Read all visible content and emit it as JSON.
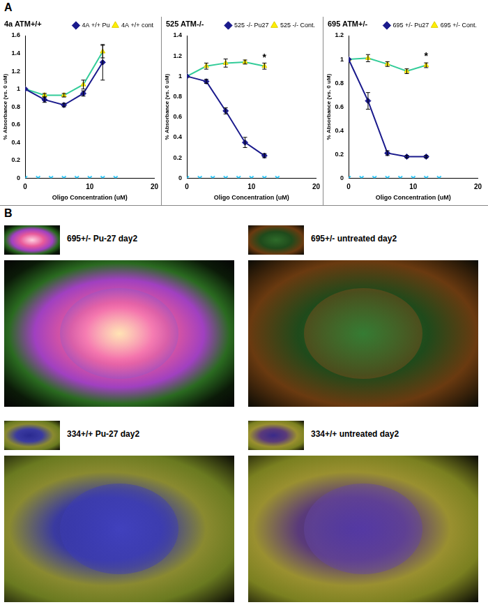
{
  "panel_labels": [
    "A",
    "B"
  ],
  "chart_data": [
    {
      "type": "line",
      "title": "4a ATM+/+",
      "x_label": "Oligo Concentration (uM)",
      "y_label": "% Absorbance (vs. 0 uM)",
      "xlim": [
        0,
        20
      ],
      "xticks": [
        0,
        10,
        20
      ],
      "ylim": [
        0,
        1.6
      ],
      "yticks": [
        0,
        0.2,
        0.4,
        0.6,
        0.8,
        1,
        1.2,
        1.4,
        1.6
      ],
      "legend": "upper right",
      "grid": false,
      "x": [
        0,
        3,
        6,
        9,
        12
      ],
      "series": [
        {
          "name": "4A +/+ Pu",
          "color": "#1a1a8c",
          "marker": "diamond",
          "values": [
            1.0,
            0.88,
            0.82,
            0.95,
            1.3
          ],
          "errors": [
            0,
            0.03,
            0.02,
            0.03,
            0.2
          ]
        },
        {
          "name": "4A +/+ cont",
          "color": "#33cc99",
          "marker": "triangle",
          "values": [
            1.0,
            0.93,
            0.93,
            1.05,
            1.42
          ],
          "errors": [
            0,
            0.02,
            0.02,
            0.05,
            0.07
          ]
        },
        {
          "color": "#33ccff",
          "marker": "x",
          "type": "scatter",
          "x": [
            0,
            2,
            4,
            6,
            8,
            10,
            12,
            14
          ],
          "values": [
            0,
            0,
            0,
            0,
            0,
            0,
            0,
            0
          ]
        }
      ]
    },
    {
      "type": "line",
      "title": "525 ATM-/-",
      "x_label": "Oligo Concentration (uM)",
      "y_label": "% Absorbance (vs. 0 uM)",
      "xlim": [
        0,
        20
      ],
      "xticks": [
        0,
        10,
        20
      ],
      "ylim": [
        0,
        1.4
      ],
      "yticks": [
        0,
        0.2,
        0.4,
        0.6,
        0.8,
        1,
        1.2,
        1.4
      ],
      "legend": "upper right",
      "grid": false,
      "x": [
        0,
        3,
        6,
        9,
        12
      ],
      "series": [
        {
          "name": "525 -/- Pu27",
          "color": "#1a1a8c",
          "marker": "diamond",
          "values": [
            1.0,
            0.95,
            0.66,
            0.35,
            0.22
          ],
          "errors": [
            0,
            0.02,
            0.03,
            0.05,
            0.02
          ]
        },
        {
          "name": "525 -/- Cont.",
          "color": "#33cc99",
          "marker": "triangle",
          "values": [
            1.0,
            1.1,
            1.13,
            1.14,
            1.1
          ],
          "errors": [
            0,
            0.03,
            0.04,
            0.02,
            0.03
          ]
        },
        {
          "color": "#33ccff",
          "marker": "x",
          "type": "scatter",
          "x": [
            0,
            2,
            4,
            6,
            8,
            10,
            12,
            14
          ],
          "values": [
            0,
            0,
            0,
            0,
            0,
            0,
            0,
            0
          ]
        }
      ],
      "annotations": [
        {
          "text": "*",
          "x": 12,
          "y": 1.18
        }
      ]
    },
    {
      "type": "line",
      "title": "695 ATM+/-",
      "x_label": "Oligo Concentration (uM)",
      "y_label": "% Absorbance (vs. 0 uM)",
      "xlim": [
        0,
        20
      ],
      "xticks": [
        0,
        10,
        20
      ],
      "ylim": [
        0,
        1.2
      ],
      "yticks": [
        0,
        0.2,
        0.4,
        0.6,
        0.8,
        1,
        1.2
      ],
      "legend": "upper right",
      "grid": false,
      "x": [
        0,
        3,
        6,
        9,
        12
      ],
      "series": [
        {
          "name": "695 +/- Pu27",
          "color": "#1a1a8c",
          "marker": "diamond",
          "values": [
            1.0,
            0.65,
            0.21,
            0.18,
            0.18
          ],
          "errors": [
            0,
            0.07,
            0.02,
            0.01,
            0.01
          ]
        },
        {
          "name": "695 +/- Cont.",
          "color": "#33cc99",
          "marker": "triangle",
          "values": [
            1.0,
            1.01,
            0.96,
            0.9,
            0.95
          ],
          "errors": [
            0,
            0.03,
            0.02,
            0.02,
            0.02
          ]
        },
        {
          "color": "#33ccff",
          "marker": "x",
          "type": "scatter",
          "x": [
            0,
            2,
            4,
            6,
            8,
            10,
            12,
            14
          ],
          "values": [
            0,
            0,
            0,
            0,
            0,
            0,
            0,
            0
          ]
        }
      ],
      "annotations": [
        {
          "text": "*",
          "x": 12,
          "y": 1.02
        }
      ]
    }
  ],
  "images": [
    {
      "label": "695+/- Pu-27 day2"
    },
    {
      "label": "695+/- untreated day2"
    },
    {
      "label": "334+/+ Pu-27 day2"
    },
    {
      "label": "334+/+ untreated day2"
    }
  ]
}
